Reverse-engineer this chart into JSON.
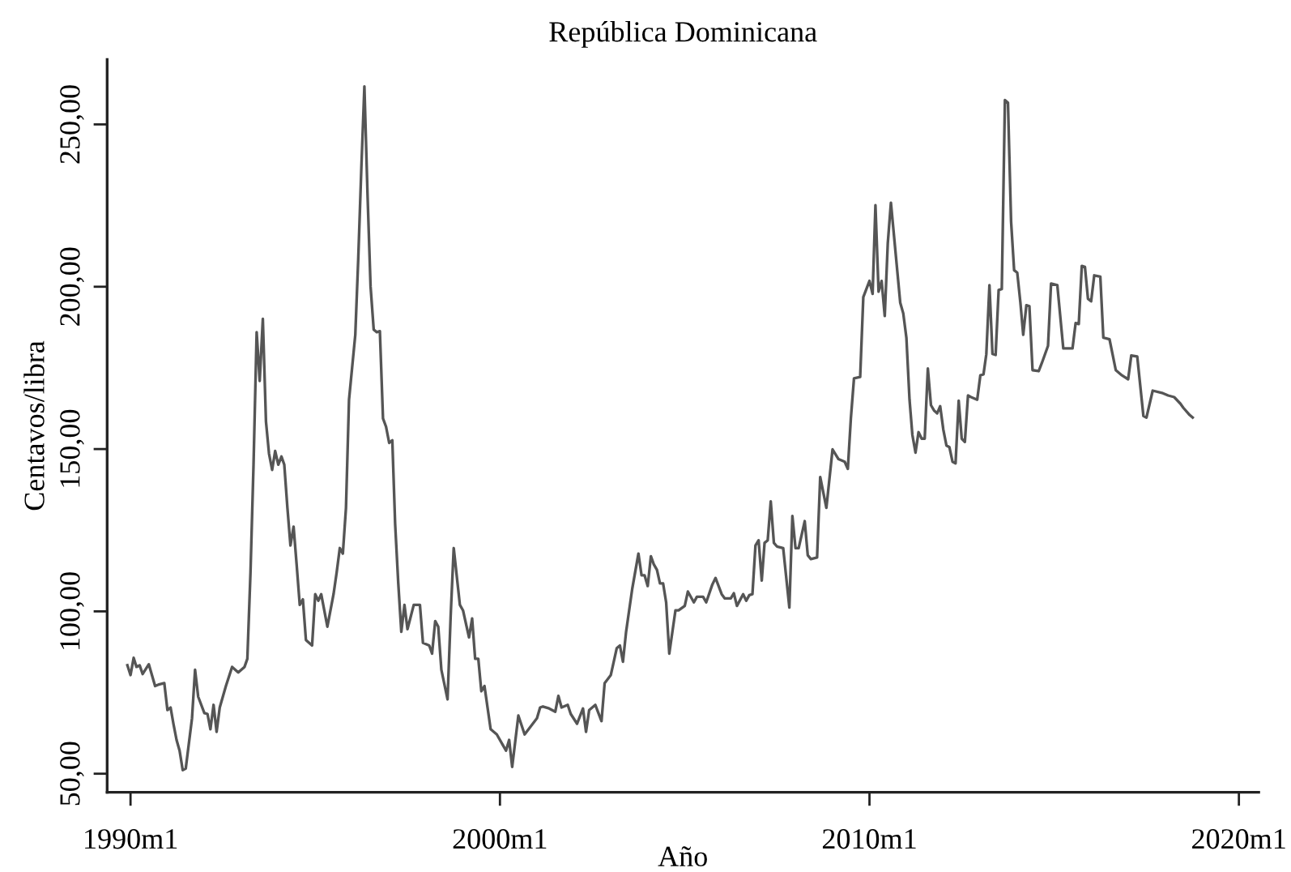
{
  "chart_data": {
    "type": "line",
    "title": "República Dominicana",
    "xlabel": "Año",
    "ylabel": "Centavos/libra",
    "xlim": [
      "1989-05-15",
      "2020-07-15"
    ],
    "ylim": [
      44.3,
      270
    ],
    "xticks": [
      {
        "value": "1990-01",
        "label": "1990m1"
      },
      {
        "value": "2000-01",
        "label": "2000m1"
      },
      {
        "value": "2010-01",
        "label": "2010m1"
      },
      {
        "value": "2020-01",
        "label": "2020m1"
      }
    ],
    "yticks": [
      {
        "value": 50,
        "label": "50,00"
      },
      {
        "value": 100,
        "label": "100,00"
      },
      {
        "value": 150,
        "label": "150,00"
      },
      {
        "value": 200,
        "label": "200,00"
      },
      {
        "value": 250,
        "label": "250,00"
      }
    ],
    "marker": "none",
    "line_style": "solid",
    "series": [
      {
        "color": "#555555",
        "x": [
          "1989-12",
          "1990-01",
          "1990-02",
          "1990-03",
          "1990-04",
          "1990-05",
          "1990-07",
          "1990-09",
          "1990-10",
          "1990-12",
          "1991-01",
          "1991-02",
          "1991-03",
          "1991-04",
          "1991-05",
          "1991-06",
          "1991-07",
          "1991-09",
          "1991-10",
          "1991-11",
          "1992-01",
          "1992-02",
          "1992-03",
          "1992-04",
          "1992-05",
          "1992-06",
          "1992-08",
          "1992-10",
          "1992-12",
          "1993-02",
          "1993-03",
          "1993-04",
          "1993-05",
          "1993-06",
          "1993-07",
          "1993-08",
          "1993-09",
          "1993-10",
          "1993-11",
          "1993-12",
          "1994-01",
          "1994-02",
          "1994-03",
          "1994-04",
          "1994-05",
          "1994-06",
          "1994-07",
          "1994-08",
          "1994-09",
          "1994-10",
          "1994-12",
          "1995-01",
          "1995-02",
          "1995-03",
          "1995-05",
          "1995-07",
          "1995-08",
          "1995-09",
          "1995-10",
          "1995-11",
          "1995-12",
          "1996-02",
          "1996-03",
          "1996-04",
          "1996-05",
          "1996-06",
          "1996-07",
          "1996-08",
          "1996-09",
          "1996-10",
          "1996-11",
          "1996-12",
          "1997-01",
          "1997-02",
          "1997-03",
          "1997-04",
          "1997-05",
          "1997-06",
          "1997-07",
          "1997-09",
          "1997-11",
          "1997-12",
          "1998-02",
          "1998-03",
          "1998-04",
          "1998-05",
          "1998-06",
          "1998-08",
          "1998-09",
          "1998-10",
          "1998-12",
          "1999-01",
          "1999-03",
          "1999-04",
          "1999-05",
          "1999-06",
          "1999-07",
          "1999-08",
          "1999-10",
          "1999-12",
          "2000-02",
          "2000-03",
          "2000-04",
          "2000-05",
          "2000-07",
          "2000-09",
          "2000-11",
          "2001-01",
          "2001-02",
          "2001-03",
          "2001-05",
          "2001-07",
          "2001-08",
          "2001-09",
          "2001-11",
          "2001-12",
          "2002-02",
          "2002-04",
          "2002-05",
          "2002-06",
          "2002-08",
          "2002-10",
          "2002-11",
          "2003-01",
          "2003-03",
          "2003-04",
          "2003-05",
          "2003-06",
          "2003-08",
          "2003-10",
          "2003-11",
          "2003-12",
          "2004-01",
          "2004-02",
          "2004-03",
          "2004-04",
          "2004-05",
          "2004-06",
          "2004-07",
          "2004-08",
          "2004-10",
          "2004-11",
          "2005-01",
          "2005-02",
          "2005-04",
          "2005-05",
          "2005-07",
          "2005-08",
          "2005-10",
          "2005-11",
          "2006-01",
          "2006-02",
          "2006-04",
          "2006-05",
          "2006-06",
          "2006-08",
          "2006-09",
          "2006-10",
          "2006-11",
          "2006-12",
          "2007-01",
          "2007-02",
          "2007-03",
          "2007-04",
          "2007-05",
          "2007-06",
          "2007-07",
          "2007-09",
          "2007-11",
          "2007-12",
          "2008-01",
          "2008-02",
          "2008-04",
          "2008-05",
          "2008-06",
          "2008-08",
          "2008-09",
          "2008-11",
          "2009-01",
          "2009-03",
          "2009-05",
          "2009-06",
          "2009-07",
          "2009-08",
          "2009-10",
          "2009-11",
          "2010-01",
          "2010-02",
          "2010-03",
          "2010-04",
          "2010-05",
          "2010-06",
          "2010-07",
          "2010-08",
          "2010-11",
          "2010-12",
          "2011-01",
          "2011-02",
          "2011-03",
          "2011-04",
          "2011-05",
          "2011-06",
          "2011-07",
          "2011-08",
          "2011-09",
          "2011-10",
          "2011-11",
          "2011-12",
          "2012-01",
          "2012-02",
          "2012-03",
          "2012-04",
          "2012-05",
          "2012-06",
          "2012-07",
          "2012-08",
          "2012-09",
          "2012-10",
          "2012-12",
          "2013-01",
          "2013-02",
          "2013-03",
          "2013-04",
          "2013-05",
          "2013-06",
          "2013-07",
          "2013-08",
          "2013-09",
          "2013-10",
          "2013-11",
          "2013-12",
          "2014-01",
          "2014-02",
          "2014-03",
          "2014-04",
          "2014-05",
          "2014-06",
          "2014-08",
          "2014-09",
          "2014-11",
          "2014-12",
          "2015-02",
          "2015-04",
          "2015-07",
          "2015-08",
          "2015-09",
          "2015-10",
          "2015-11",
          "2015-12",
          "2016-01",
          "2016-02",
          "2016-04",
          "2016-05",
          "2016-07",
          "2016-09",
          "2016-11",
          "2017-01",
          "2017-02",
          "2017-04",
          "2017-06",
          "2017-07",
          "2017-09",
          "2017-12",
          "2018-02",
          "2018-04",
          "2018-06",
          "2018-07",
          "2018-09",
          "2018-10"
        ],
        "values": [
          83.4,
          80.4,
          85.7,
          82.9,
          83.4,
          80.7,
          83.7,
          77.0,
          77.4,
          77.9,
          69.6,
          70.4,
          65.4,
          60.4,
          57.1,
          51.1,
          51.6,
          67.1,
          82.0,
          73.7,
          68.7,
          68.4,
          63.7,
          71.2,
          62.9,
          70.4,
          77.0,
          82.9,
          81.2,
          82.9,
          85.4,
          112.0,
          145.2,
          186.0,
          171.0,
          190.1,
          158.5,
          148.6,
          143.6,
          149.4,
          145.2,
          147.7,
          145.2,
          131.9,
          120.3,
          126.1,
          114.5,
          102.0,
          103.7,
          91.2,
          89.5,
          105.3,
          103.3,
          105.3,
          95.3,
          105.3,
          112.0,
          119.5,
          117.8,
          131.9,
          165.2,
          185.2,
          208.4,
          236.7,
          261.7,
          228.4,
          200.1,
          186.8,
          186.0,
          186.3,
          159.4,
          156.9,
          151.9,
          152.7,
          126.9,
          108.6,
          93.7,
          102.0,
          94.5,
          102.0,
          102.0,
          90.3,
          89.5,
          87.0,
          97.0,
          95.3,
          82.0,
          72.9,
          98.7,
          119.5,
          102.0,
          100.3,
          92.0,
          97.8,
          85.4,
          85.4,
          75.4,
          77.0,
          63.7,
          62.1,
          58.7,
          57.1,
          60.4,
          52.1,
          67.9,
          62.1,
          64.6,
          67.1,
          70.4,
          70.7,
          70.1,
          69.1,
          74.0,
          70.4,
          71.2,
          68.4,
          65.4,
          70.1,
          62.9,
          69.6,
          71.2,
          66.2,
          77.9,
          80.4,
          88.7,
          89.5,
          84.5,
          93.7,
          107.0,
          117.8,
          111.1,
          111.1,
          107.8,
          117.0,
          114.5,
          112.8,
          108.6,
          108.6,
          102.8,
          87.0,
          100.3,
          100.3,
          101.7,
          106.1,
          102.8,
          104.5,
          104.5,
          102.8,
          108.3,
          110.3,
          105.3,
          104.0,
          104.0,
          105.6,
          101.7,
          105.3,
          103.3,
          105.0,
          105.3,
          120.3,
          121.9,
          109.5,
          121.1,
          121.9,
          133.9,
          121.1,
          120.0,
          119.5,
          101.2,
          129.4,
          119.5,
          119.5,
          127.8,
          117.3,
          116.1,
          116.6,
          141.4,
          131.9,
          149.9,
          146.9,
          146.1,
          143.9,
          159.4,
          171.8,
          172.2,
          196.8,
          201.8,
          197.8,
          225.1,
          198.5,
          201.8,
          191.0,
          213.4,
          225.9,
          195.1,
          191.8,
          184.3,
          165.2,
          154.4,
          148.9,
          155.2,
          153.2,
          153.2,
          174.8,
          163.5,
          161.9,
          161.0,
          163.2,
          156.0,
          151.1,
          150.6,
          146.1,
          145.6,
          164.9,
          153.2,
          152.2,
          166.5,
          166.0,
          165.2,
          172.7,
          173.0,
          179.2,
          200.5,
          179.3,
          179.0,
          199.0,
          199.3,
          257.5,
          256.7,
          220.1,
          205.1,
          204.3,
          195.1,
          185.2,
          194.3,
          194.0,
          174.3,
          174.0,
          176.5,
          181.8,
          201.0,
          200.5,
          181.0,
          181.0,
          188.8,
          188.5,
          206.4,
          206.1,
          196.3,
          195.5,
          203.5,
          203.1,
          184.3,
          183.8,
          174.3,
          172.7,
          171.5,
          178.8,
          178.5,
          160.2,
          159.7,
          168.0,
          167.3,
          166.5,
          166.0,
          164.0,
          162.7,
          160.5,
          159.7
        ]
      }
    ]
  }
}
